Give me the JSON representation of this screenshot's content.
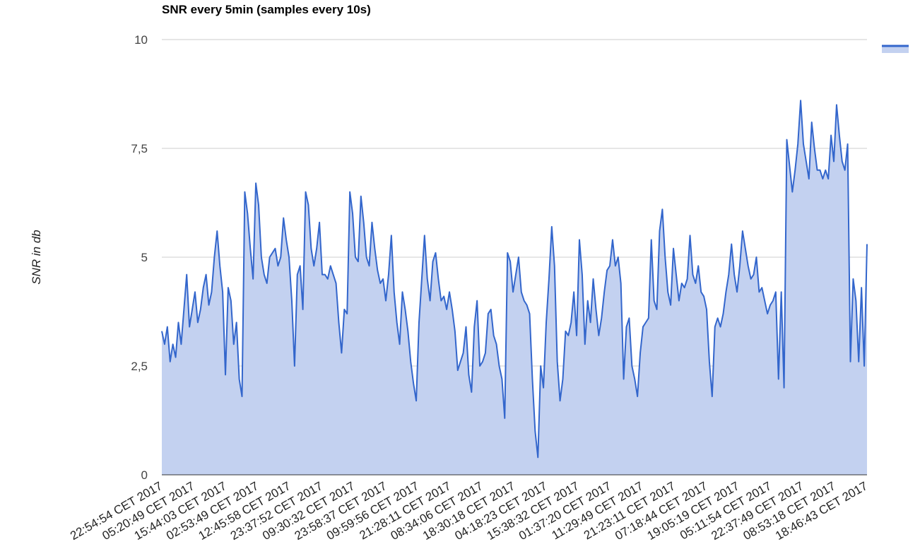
{
  "chart_data": {
    "type": "area",
    "title": "SNR every 5min (samples every 10s)",
    "xlabel": "",
    "ylabel": "SNR in db",
    "ylim": [
      0,
      10
    ],
    "yticks": [
      "0",
      "2,5",
      "5",
      "7,5",
      "10"
    ],
    "ytick_values": [
      0,
      2.5,
      5,
      7.5,
      10
    ],
    "grid": true,
    "legend": "top-right",
    "colors": {
      "line": "#3366cc",
      "fill": "#c3d1f0",
      "grid": "#cccccc",
      "axis": "#333333"
    },
    "x_tick_labels": [
      "22:54:54 CET 2017",
      "05:20:49 CET 2017",
      "15:44:03 CET 2017",
      "02:53:49 CET 2017",
      "12:45:58 CET 2017",
      "23:37:52 CET 2017",
      "09:30:32 CET 2017",
      "23:58:37 CET 2017",
      "09:59:56 CET 2017",
      "21:28:11 CET 2017",
      "08:34:06 CET 2017",
      "18:30:18 CET 2017",
      "04:18:23 CET 2017",
      "15:38:32 CET 2017",
      "01:37:20 CET 2017",
      "11:29:49 CET 2017",
      "21:23:11 CET 2017",
      "07:18:44 CET 2017",
      "19:05:19 CET 2017",
      "05:11:54 CET 2017",
      "22:37:49 CET 2017",
      "08:53:18 CET 2017",
      "18:46:43 CET 2017"
    ],
    "series": [
      {
        "values": [
          3.3,
          3.0,
          3.4,
          2.6,
          3.0,
          2.7,
          3.5,
          3.0,
          3.8,
          4.6,
          3.4,
          3.8,
          4.2,
          3.5,
          3.8,
          4.3,
          4.6,
          3.9,
          4.2,
          5.0,
          5.6,
          4.8,
          4.2,
          2.3,
          4.3,
          4.0,
          3.0,
          3.5,
          2.2,
          1.8,
          6.5,
          6.0,
          5.2,
          4.5,
          6.7,
          6.2,
          5.0,
          4.6,
          4.4,
          5.0,
          5.1,
          5.2,
          4.8,
          5.0,
          5.9,
          5.4,
          5.0,
          4.0,
          2.5,
          4.6,
          4.8,
          3.8,
          6.5,
          6.2,
          5.2,
          4.8,
          5.2,
          5.8,
          4.6,
          4.6,
          4.5,
          4.8,
          4.6,
          4.4,
          3.5,
          2.8,
          3.8,
          3.7,
          6.5,
          6.0,
          5.0,
          4.9,
          6.4,
          5.8,
          5.0,
          4.8,
          5.8,
          5.2,
          4.7,
          4.4,
          4.5,
          4.0,
          4.6,
          5.5,
          4.2,
          3.5,
          3.0,
          4.2,
          3.8,
          3.3,
          2.6,
          2.1,
          1.7,
          3.5,
          4.5,
          5.5,
          4.5,
          4.0,
          4.9,
          5.1,
          4.5,
          4.0,
          4.1,
          3.8,
          4.2,
          3.8,
          3.3,
          2.4,
          2.6,
          2.8,
          3.4,
          2.3,
          1.9,
          3.4,
          4.0,
          2.5,
          2.6,
          2.8,
          3.7,
          3.8,
          3.2,
          3.0,
          2.5,
          2.2,
          1.3,
          5.1,
          4.9,
          4.2,
          4.6,
          5.0,
          4.2,
          4.0,
          3.9,
          3.7,
          2.2,
          1.0,
          0.4,
          2.5,
          2.0,
          3.5,
          4.5,
          5.7,
          4.8,
          2.6,
          1.7,
          2.2,
          3.3,
          3.2,
          3.5,
          4.2,
          3.2,
          5.4,
          4.6,
          3.0,
          4.0,
          3.5,
          4.5,
          3.8,
          3.2,
          3.6,
          4.2,
          4.7,
          4.8,
          5.4,
          4.8,
          5.0,
          4.4,
          2.2,
          3.4,
          3.6,
          2.5,
          2.2,
          1.8,
          2.8,
          3.4,
          3.5,
          3.6,
          5.4,
          4.0,
          3.8,
          5.6,
          6.1,
          5.0,
          4.2,
          3.9,
          5.2,
          4.6,
          4.0,
          4.4,
          4.3,
          4.5,
          5.5,
          4.6,
          4.4,
          4.8,
          4.2,
          4.1,
          3.8,
          2.6,
          1.8,
          3.4,
          3.6,
          3.4,
          3.7,
          4.2,
          4.6,
          5.3,
          4.6,
          4.2,
          4.8,
          5.6,
          5.2,
          4.8,
          4.5,
          4.6,
          5.0,
          4.2,
          4.3,
          4.0,
          3.7,
          3.9,
          4.0,
          4.2,
          2.2,
          4.2,
          2.0,
          7.7,
          7.1,
          6.5,
          7.0,
          7.6,
          8.6,
          7.6,
          7.2,
          6.8,
          8.1,
          7.5,
          7.0,
          7.0,
          6.8,
          7.0,
          6.8,
          7.8,
          7.2,
          8.5,
          7.8,
          7.2,
          7.0,
          7.6,
          2.6,
          4.5,
          4.0,
          2.6,
          4.3,
          2.5,
          5.3
        ]
      }
    ]
  }
}
